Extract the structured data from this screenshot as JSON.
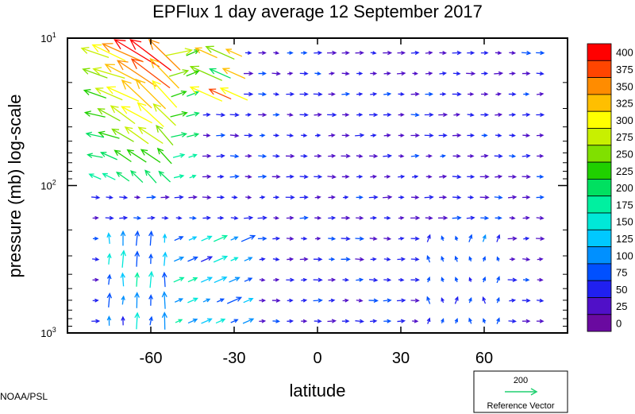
{
  "chart_data": {
    "type": "vector-field",
    "title": "EPFlux  1 day average  12 September 2017",
    "xlabel": "latitude",
    "ylabel": "pressure (mb)  log-scale",
    "xlim": [
      -90,
      90
    ],
    "ylim": [
      1000,
      10
    ],
    "y_scale": "log",
    "x_ticks": [
      {
        "value": -60,
        "label": "-60"
      },
      {
        "value": -30,
        "label": "-30"
      },
      {
        "value": 0,
        "label": "0"
      },
      {
        "value": 30,
        "label": "30"
      },
      {
        "value": 60,
        "label": "60"
      }
    ],
    "y_ticks": [
      {
        "value": 10,
        "base": "10",
        "exp": "1"
      },
      {
        "value": 100,
        "base": "10",
        "exp": "2"
      },
      {
        "value": 1000,
        "base": "10",
        "exp": "3"
      }
    ],
    "colorbar": {
      "labels": [
        "400",
        "375",
        "350",
        "325",
        "300",
        "275",
        "250",
        "225",
        "200",
        "175",
        "150",
        "125",
        "100",
        "75",
        "50",
        "25",
        "0"
      ],
      "colors": [
        "#ff0000",
        "#ff4500",
        "#ff8c00",
        "#ffbf00",
        "#ffff00",
        "#c8f000",
        "#80e000",
        "#20d000",
        "#00e060",
        "#00f0a0",
        "#00e8d8",
        "#00c8ff",
        "#0090ff",
        "#0050ff",
        "#2020f0",
        "#5010c8",
        "#6a0aa0"
      ]
    },
    "reference_vector": {
      "value": "200",
      "label": "Reference Vector"
    },
    "credit": "NOAA/PSL"
  }
}
